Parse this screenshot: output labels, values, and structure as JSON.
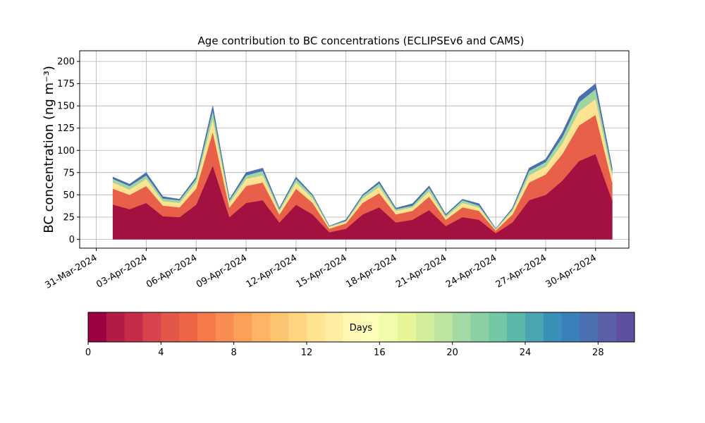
{
  "chart_data": {
    "type": "stacked-area",
    "title": "Age contribution to BC concentrations (ECLIPSEv6 and CAMS)",
    "y_label": "BC concentration (ng m⁻³)",
    "x": [
      "2024-04-01",
      "2024-04-02",
      "2024-04-03",
      "2024-04-04",
      "2024-04-05",
      "2024-04-06",
      "2024-04-07",
      "2024-04-08",
      "2024-04-09",
      "2024-04-10",
      "2024-04-11",
      "2024-04-12",
      "2024-04-13",
      "2024-04-14",
      "2024-04-15",
      "2024-04-16",
      "2024-04-17",
      "2024-04-18",
      "2024-04-19",
      "2024-04-20",
      "2024-04-21",
      "2024-04-22",
      "2024-04-23",
      "2024-04-24",
      "2024-04-25",
      "2024-04-26",
      "2024-04-27",
      "2024-04-28",
      "2024-04-29",
      "2024-04-30",
      "2024-05-01"
    ],
    "series": [
      {
        "color": "#a2113f",
        "values": [
          39,
          34,
          41,
          26,
          25,
          39,
          83,
          25,
          41,
          44,
          19,
          39,
          28,
          8,
          12,
          28,
          36,
          19,
          22,
          33,
          15,
          25,
          22,
          7,
          19,
          44,
          50,
          66,
          88,
          96,
          44
        ]
      },
      {
        "color": "#e9604a",
        "values": [
          18,
          16,
          19,
          12,
          11,
          18,
          38,
          11,
          19,
          20,
          9,
          18,
          13,
          4,
          6,
          13,
          16,
          9,
          10,
          15,
          7,
          11,
          10,
          3,
          9,
          20,
          23,
          30,
          40,
          44,
          20
        ]
      },
      {
        "color": "#fee391",
        "values": [
          7,
          6,
          8,
          5,
          5,
          7,
          15,
          5,
          8,
          8,
          4,
          7,
          5,
          2,
          2,
          5,
          7,
          4,
          4,
          6,
          3,
          5,
          4,
          1,
          4,
          8,
          9,
          12,
          16,
          18,
          8
        ]
      },
      {
        "color": "#9dd6a4",
        "values": [
          4,
          4,
          4,
          3,
          3,
          4,
          9,
          3,
          4,
          5,
          2,
          4,
          3,
          1,
          1,
          3,
          4,
          2,
          2,
          4,
          2,
          3,
          2,
          1,
          2,
          5,
          5,
          7,
          10,
          11,
          5
        ]
      },
      {
        "color": "#4a6fb0",
        "values": [
          2,
          2,
          3,
          2,
          1,
          2,
          5,
          1,
          3,
          3,
          1,
          2,
          1,
          0,
          1,
          1,
          2,
          1,
          2,
          2,
          1,
          1,
          2,
          0,
          1,
          3,
          3,
          5,
          6,
          6,
          3
        ]
      }
    ],
    "xlim": [
      "2024-03-30",
      "2024-05-02"
    ],
    "xticks": [
      {
        "value": "2024-03-31",
        "label": "31-Mar-2024"
      },
      {
        "value": "2024-04-03",
        "label": "03-Apr-2024"
      },
      {
        "value": "2024-04-06",
        "label": "06-Apr-2024"
      },
      {
        "value": "2024-04-09",
        "label": "09-Apr-2024"
      },
      {
        "value": "2024-04-12",
        "label": "12-Apr-2024"
      },
      {
        "value": "2024-04-15",
        "label": "15-Apr-2024"
      },
      {
        "value": "2024-04-18",
        "label": "18-Apr-2024"
      },
      {
        "value": "2024-04-21",
        "label": "21-Apr-2024"
      },
      {
        "value": "2024-04-24",
        "label": "24-Apr-2024"
      },
      {
        "value": "2024-04-27",
        "label": "27-Apr-2024"
      },
      {
        "value": "2024-04-30",
        "label": "30-Apr-2024"
      }
    ],
    "ylim": [
      -10,
      212
    ],
    "yticks": [
      0,
      25,
      50,
      75,
      100,
      125,
      150,
      175,
      200
    ],
    "grid": true,
    "colorbar": {
      "label": "Days",
      "lim": [
        0,
        30
      ],
      "ticks": [
        0,
        4,
        8,
        12,
        16,
        20,
        24,
        28
      ],
      "colors": [
        "#9e0142",
        "#b41a46",
        "#c72b4a",
        "#d8434e",
        "#e2574a",
        "#eb6546",
        "#f47a4a",
        "#f88d52",
        "#fba05b",
        "#fdb466",
        "#fdc473",
        "#fed481",
        "#fee391",
        "#feeea2",
        "#fff8b4",
        "#fbfdb9",
        "#f2faac",
        "#e6f598",
        "#d2ed9b",
        "#bde5a0",
        "#a4daa4",
        "#8ad0a4",
        "#72c7a5",
        "#5cb6a9",
        "#4aa4b2",
        "#3991b9",
        "#3a80b9",
        "#4b6fb0",
        "#5a5fa8",
        "#5e4fa2"
      ]
    }
  }
}
